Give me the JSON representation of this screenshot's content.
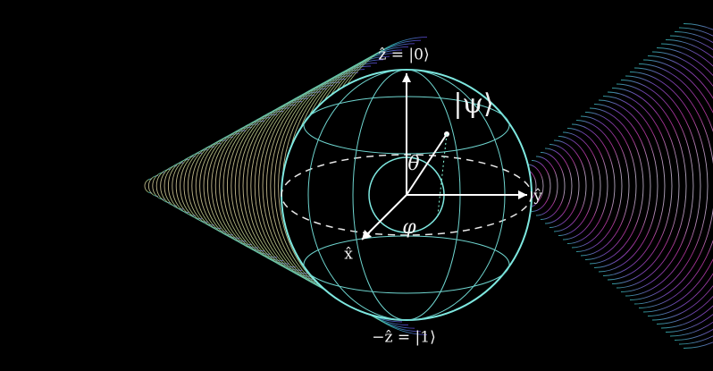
{
  "labels": {
    "z_top": "ẑ = |0⟩",
    "psi": "|ψ⟩",
    "theta": "θ",
    "phi": "φ",
    "x": "x̂",
    "y": "ŷ",
    "z_bottom": "−ẑ = |1⟩"
  }
}
